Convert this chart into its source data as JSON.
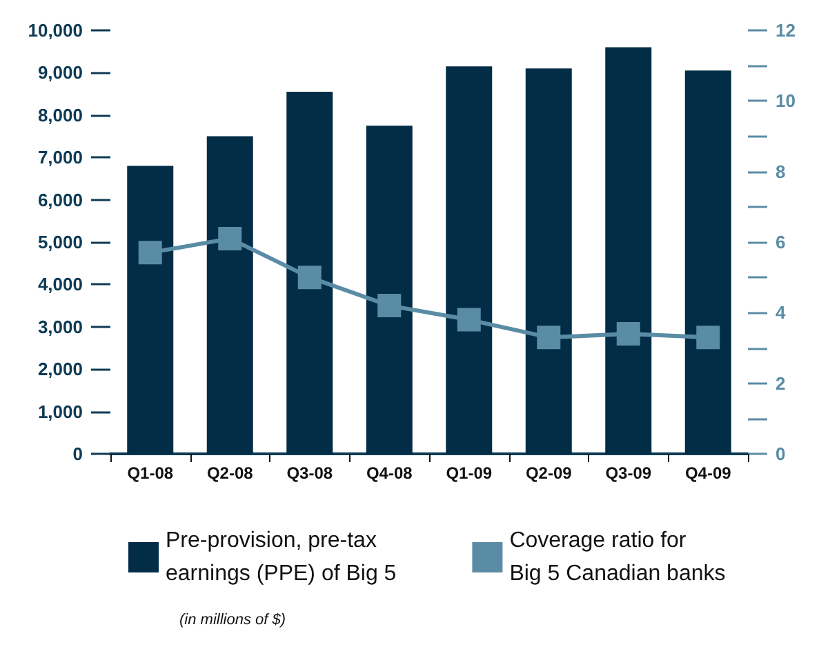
{
  "chart_data": {
    "type": "bar",
    "categories": [
      "Q1-08",
      "Q2-08",
      "Q3-08",
      "Q4-08",
      "Q1-09",
      "Q2-09",
      "Q3-09",
      "Q4-09"
    ],
    "series": [
      {
        "name": "Pre-provision, pre-tax\nearnings (PPE) of Big 5",
        "color": "#032d47",
        "values": [
          6800,
          7500,
          8550,
          7750,
          9150,
          9100,
          9600,
          9050
        ]
      },
      {
        "name": "Coverage ratio for\nBig 5 Canadian banks",
        "type": "line",
        "axis": "y2",
        "color": "#5a8ca5",
        "marker": "square",
        "values": [
          5.7,
          6.1,
          5.0,
          4.2,
          3.8,
          3.3,
          3.4,
          3.3
        ]
      }
    ],
    "ylim": [
      0,
      10000
    ],
    "yticks": [
      0,
      {
        "value": 1000,
        "label": "1,000"
      },
      {
        "value": 2000,
        "label": "2,000"
      },
      {
        "value": 3000,
        "label": "3,000"
      },
      {
        "value": 4000,
        "label": "4,000"
      },
      {
        "value": 5000,
        "label": "5,000"
      },
      {
        "value": 6000,
        "label": "6,000"
      },
      {
        "value": 7000,
        "label": "7,000"
      },
      {
        "value": 8000,
        "label": "8,000"
      },
      {
        "value": 9000,
        "label": "9,000"
      },
      {
        "value": 10000,
        "label": "10,000"
      }
    ],
    "y2lim": [
      0,
      12
    ],
    "y2ticks": [
      0,
      {
        "value": 1,
        "label": null
      },
      2,
      {
        "value": 3,
        "label": null
      },
      4,
      {
        "value": 5,
        "label": null
      },
      6,
      {
        "value": 7,
        "label": null
      },
      8,
      {
        "value": 9,
        "label": null
      },
      10,
      {
        "value": 11,
        "label": null
      },
      12
    ],
    "grid": false,
    "legend": "bottom",
    "annotations": [
      "(in millions of $)"
    ]
  }
}
